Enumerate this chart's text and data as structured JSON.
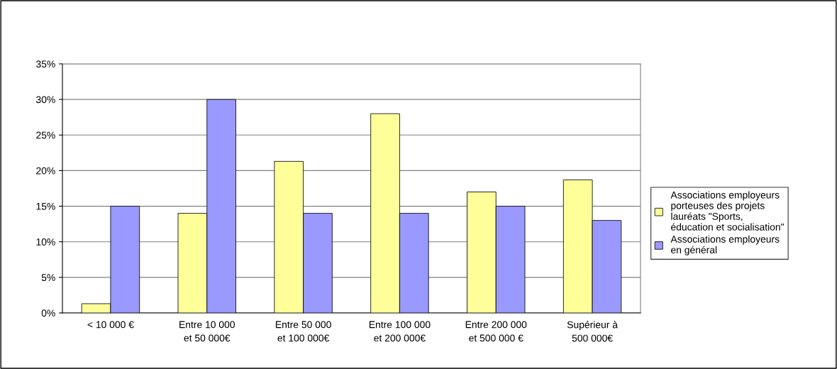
{
  "chart_data": {
    "type": "bar",
    "categories": [
      "< 10 000 €",
      "Entre 10 000\net 50 000€",
      "Entre 50 000\net 100 000€",
      "Entre 100 000\net 200 000€",
      "Entre 200 000\net 500 000 €",
      "Supérieur à\n500 000€"
    ],
    "series": [
      {
        "name": "Associations employeurs\nporteuses des projets\nlauréats \"Sports,\néducation et socialisation\"",
        "color": "#ffff99",
        "values": [
          1.3,
          14,
          21.3,
          28,
          17,
          18.7
        ]
      },
      {
        "name": "Associations employeurs\nen général",
        "color": "#9999ff",
        "values": [
          15,
          30,
          14,
          14,
          15,
          13
        ]
      }
    ],
    "ylim": [
      0,
      35
    ],
    "yticks": [
      {
        "value": 0,
        "label": "0%"
      },
      {
        "value": 5,
        "label": "5%"
      },
      {
        "value": 10,
        "label": "10%"
      },
      {
        "value": 15,
        "label": "15%"
      },
      {
        "value": 20,
        "label": "20%"
      },
      {
        "value": 25,
        "label": "25%"
      },
      {
        "value": 30,
        "label": "30%"
      },
      {
        "value": 35,
        "label": "35%"
      }
    ],
    "grid": "y",
    "legend": "right"
  }
}
